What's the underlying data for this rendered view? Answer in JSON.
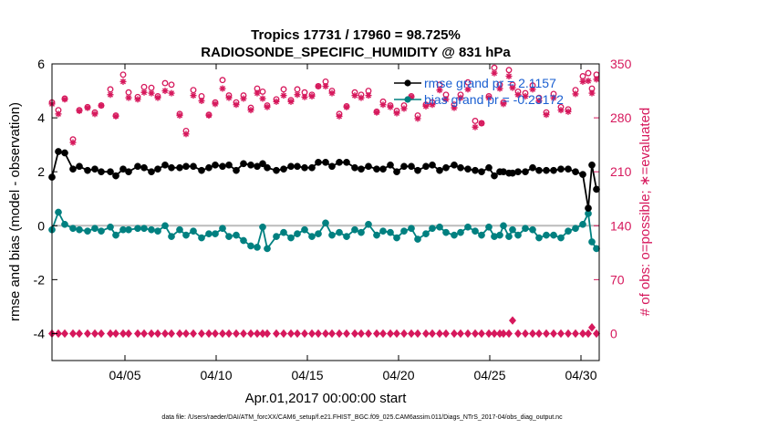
{
  "figure": {
    "title_line1": "Tropics 17731 / 17960 = 98.725%",
    "title_line2": "RADIOSONDE_SPECIFIC_HUMIDITY @ 831 hPa",
    "footnote": "data file: /Users/raeder/DAI/ATM_forcXX/CAM6_setup/f.e21.FHIST_BGC.f09_025.CAM6assim.011/Diags_NTrS_2017-04/obs_diag_output.nc"
  },
  "colors": {
    "rmse": "#000000",
    "bias": "#008080",
    "counts": "#d6185c",
    "zero_line": "#bbbbbb",
    "legend_text": "#1a5fd1"
  },
  "chart_data": {
    "type": "line",
    "title": "Tropics 17731 / 17960 = 98.725%",
    "subtitle": "RADIOSONDE_SPECIFIC_HUMIDITY @ 831 hPa",
    "xlabel": "Apr.01,2017 00:00:00 start",
    "ylabel": "rmse and bias (model - observation)",
    "ylabel_right": "# of obs: o=possible; ∗=evaluated",
    "x_tick_labels": [
      "04/05",
      "04/10",
      "04/15",
      "04/20",
      "04/25",
      "04/30"
    ],
    "x_ticks": [
      5,
      10,
      15,
      20,
      25,
      30
    ],
    "xlim": [
      1,
      31
    ],
    "ylim": [
      -5,
      6
    ],
    "y_ticks": [
      -4,
      -2,
      0,
      2,
      4,
      6
    ],
    "y_tick_labels": [
      "-4",
      "-2",
      "0",
      "2",
      "4",
      "6"
    ],
    "ylim_right": [
      -35,
      350
    ],
    "y_ticks_right": [
      0,
      70,
      140,
      210,
      280,
      350
    ],
    "y_tick_labels_right": [
      "0",
      "70",
      "140",
      "210",
      "280",
      "350"
    ],
    "legend": [
      "rmse grand pr = 2.1157",
      "bias grand pr = -0.23172"
    ],
    "x": [
      1.0,
      1.35,
      1.7,
      2.15,
      2.5,
      2.95,
      3.35,
      3.7,
      4.2,
      4.5,
      4.9,
      5.2,
      5.7,
      6.05,
      6.45,
      6.8,
      7.2,
      7.55,
      8.0,
      8.35,
      8.75,
      9.2,
      9.6,
      9.95,
      10.35,
      10.7,
      11.1,
      11.5,
      11.9,
      12.25,
      12.55,
      12.8,
      13.3,
      13.7,
      14.1,
      14.45,
      14.85,
      15.25,
      15.6,
      16.0,
      16.35,
      16.75,
      17.15,
      17.6,
      17.95,
      18.35,
      18.8,
      19.15,
      19.55,
      19.9,
      20.3,
      20.7,
      21.05,
      21.5,
      21.85,
      22.25,
      22.6,
      23.05,
      23.4,
      23.8,
      24.2,
      24.55,
      24.95,
      25.25,
      25.55,
      25.75,
      26.05,
      26.25,
      26.55,
      26.95,
      27.35,
      27.7,
      28.1,
      28.5,
      28.9,
      29.3,
      29.7,
      30.1,
      30.4,
      30.6,
      30.85
    ],
    "series": [
      {
        "name": "rmse",
        "axis": "left",
        "marker": "filled-circle",
        "values": [
          1.8,
          2.75,
          2.7,
          2.1,
          2.2,
          2.05,
          2.1,
          2.0,
          2.0,
          1.85,
          2.1,
          2.0,
          2.2,
          2.15,
          2.0,
          2.1,
          2.25,
          2.15,
          2.15,
          2.2,
          2.2,
          2.05,
          2.15,
          2.25,
          2.2,
          2.25,
          2.05,
          2.3,
          2.25,
          2.2,
          2.3,
          2.15,
          2.05,
          2.1,
          2.2,
          2.2,
          2.15,
          2.15,
          2.35,
          2.35,
          2.2,
          2.35,
          2.35,
          2.15,
          2.1,
          2.2,
          2.1,
          2.1,
          2.25,
          2.0,
          2.2,
          2.2,
          2.05,
          2.2,
          2.25,
          2.05,
          2.15,
          2.25,
          2.15,
          2.1,
          2.05,
          2.0,
          2.15,
          1.85,
          2.0,
          2.0,
          1.95,
          1.95,
          2.0,
          2.0,
          2.15,
          2.05,
          2.05,
          2.05,
          2.1,
          2.1,
          2.0,
          1.9,
          0.65,
          2.25,
          1.35
        ]
      },
      {
        "name": "bias",
        "axis": "left",
        "marker": "filled-circle",
        "values": [
          -0.15,
          0.5,
          0.05,
          -0.1,
          -0.15,
          -0.2,
          -0.1,
          -0.2,
          -0.05,
          -0.35,
          -0.15,
          -0.15,
          -0.1,
          -0.1,
          -0.15,
          -0.2,
          0.0,
          -0.4,
          -0.15,
          -0.35,
          -0.2,
          -0.45,
          -0.3,
          -0.3,
          -0.1,
          -0.4,
          -0.35,
          -0.55,
          -0.75,
          -0.8,
          -0.05,
          -0.85,
          -0.4,
          -0.25,
          -0.45,
          -0.3,
          -0.15,
          -0.4,
          -0.3,
          0.1,
          -0.35,
          -0.25,
          -0.4,
          -0.15,
          -0.25,
          0.05,
          -0.35,
          -0.2,
          -0.25,
          -0.45,
          -0.2,
          -0.1,
          -0.5,
          -0.3,
          -0.1,
          -0.05,
          -0.25,
          -0.35,
          -0.25,
          -0.05,
          -0.2,
          -0.35,
          -0.05,
          -0.4,
          -0.35,
          0.0,
          -0.4,
          -0.15,
          -0.35,
          -0.1,
          -0.15,
          -0.45,
          -0.35,
          -0.35,
          -0.45,
          -0.2,
          -0.1,
          0.05,
          0.45,
          -0.6,
          -0.85
        ]
      },
      {
        "name": "possible",
        "axis": "right",
        "marker": "o",
        "values": [
          300,
          290,
          305,
          252,
          290,
          294,
          287,
          296,
          317,
          283,
          336,
          313,
          307,
          320,
          319,
          308,
          325,
          323,
          285,
          263,
          316,
          308,
          284,
          300,
          329,
          309,
          300,
          309,
          293,
          318,
          314,
          296,
          304,
          317,
          303,
          317,
          313,
          310,
          321,
          327,
          315,
          285,
          295,
          313,
          310,
          315,
          288,
          301,
          296,
          289,
          296,
          308,
          283,
          297,
          300,
          323,
          310,
          297,
          310,
          326,
          276,
          273,
          308,
          345,
          323,
          300,
          342,
          323,
          314,
          312,
          322,
          306,
          287,
          311,
          294,
          291,
          316,
          334,
          338,
          318,
          336
        ]
      },
      {
        "name": "evaluated",
        "axis": "right",
        "marker": "asterisk",
        "values": [
          298,
          285,
          304,
          248,
          289,
          293,
          285,
          296,
          310,
          282,
          327,
          306,
          304,
          313,
          312,
          306,
          315,
          312,
          283,
          259,
          309,
          302,
          283,
          298,
          318,
          306,
          297,
          305,
          290,
          312,
          305,
          294,
          301,
          309,
          301,
          310,
          307,
          308,
          321,
          321,
          312,
          282,
          294,
          309,
          306,
          309,
          287,
          297,
          294,
          286,
          292,
          307,
          279,
          295,
          297,
          316,
          304,
          293,
          306,
          317,
          268,
          273,
          306,
          338,
          318,
          298,
          334,
          319,
          310,
          308,
          317,
          302,
          284,
          306,
          290,
          288,
          311,
          327,
          328,
          312,
          330
        ]
      },
      {
        "name": "rejected",
        "axis": "right",
        "marker": "diamond",
        "values": [
          0,
          0,
          0,
          0,
          0,
          0,
          0,
          0,
          0,
          0,
          0,
          0,
          0,
          0,
          0,
          0,
          0,
          0,
          0,
          0,
          0,
          0,
          0,
          0,
          0,
          0,
          0,
          0,
          0,
          0,
          0,
          0,
          0,
          0,
          0,
          0,
          0,
          0,
          0,
          0,
          0,
          0,
          0,
          0,
          0,
          0,
          0,
          0,
          0,
          0,
          0,
          0,
          0,
          0,
          0,
          0,
          0,
          0,
          0,
          0,
          0,
          0,
          0,
          0,
          0,
          0,
          0,
          17,
          0,
          0,
          0,
          0,
          0,
          0,
          0,
          0,
          0,
          0,
          0,
          8,
          0
        ]
      }
    ]
  }
}
